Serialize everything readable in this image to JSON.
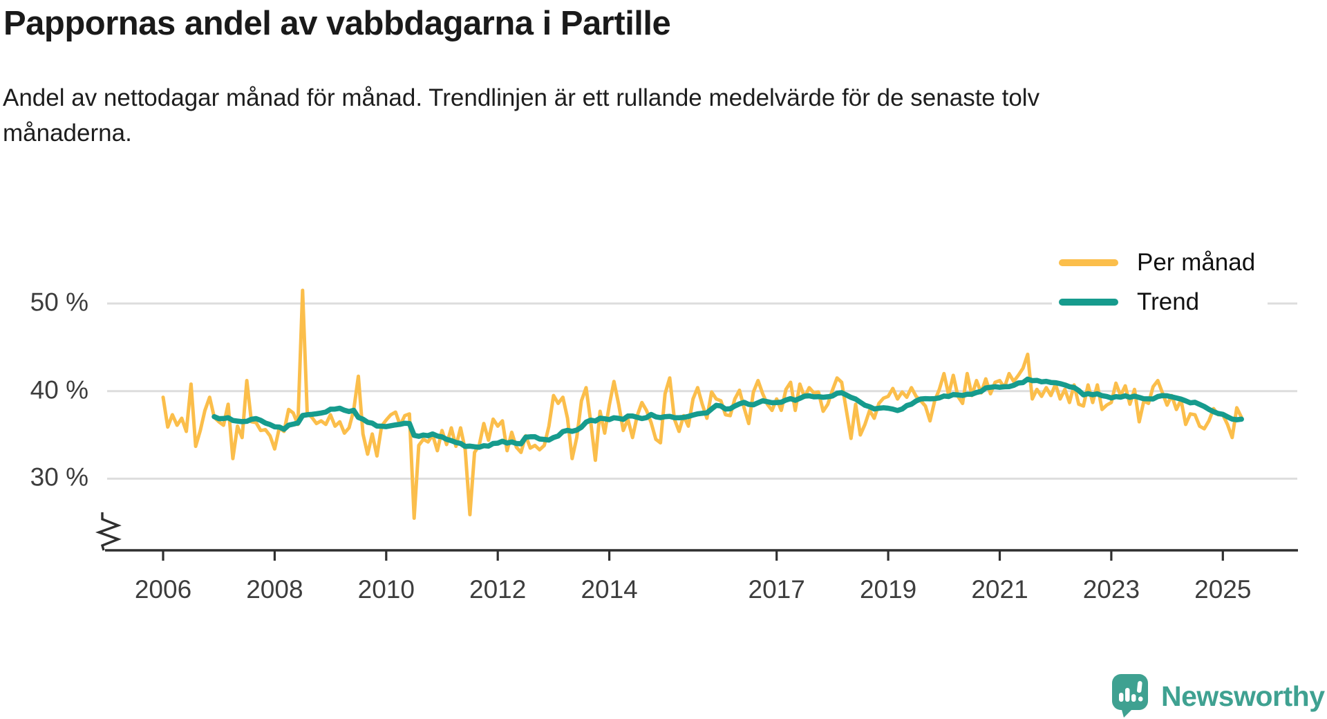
{
  "title": "Pappornas andel av vabbdagarna i Partille",
  "subtitle": "Andel av nettodagar månad för månad. Trendlinjen är ett rullande medelvärde för de senaste tolv månaderna.",
  "legend": {
    "monthly": "Per månad",
    "trend": "Trend"
  },
  "branding": {
    "name": "Newsworthy"
  },
  "colors": {
    "monthly": "#FBBE4B",
    "trend": "#169B8D",
    "grid": "#DDDDDD",
    "axis": "#2F2F2F",
    "tick_label": "#3d3d3d",
    "brand": "#3FA191"
  },
  "chart_data": {
    "type": "line",
    "title": "Pappornas andel av vabbdagarna i Partille",
    "unit": "%",
    "start_year": 2006,
    "start_month": 1,
    "frequency": "monthly",
    "x_ticks": [
      2006,
      2008,
      2010,
      2012,
      2014,
      2017,
      2019,
      2021,
      2023,
      2025
    ],
    "y_ticks": [
      "50 %",
      "40 %",
      "30 %"
    ],
    "y_tick_values": [
      50,
      40,
      30
    ],
    "y_axis_break": true,
    "grid": true,
    "legend_position": "top-right",
    "series": [
      {
        "name": "Per månad",
        "values": [
          39.3,
          35.9,
          37.3,
          36.1,
          36.9,
          35.4,
          40.8,
          33.7,
          35.5,
          37.8,
          39.3,
          37.0,
          36.5,
          36.1,
          38.5,
          32.3,
          36.0,
          34.7,
          41.2,
          36.5,
          36.4,
          35.5,
          35.6,
          34.9,
          33.4,
          35.8,
          35.4,
          37.9,
          37.5,
          36.2,
          51.5,
          37.5,
          37.0,
          36.3,
          36.6,
          36.2,
          37.3,
          36.0,
          36.5,
          35.2,
          35.8,
          37.8,
          41.7,
          35.1,
          32.8,
          35.1,
          32.6,
          36.0,
          36.7,
          37.3,
          37.6,
          36.1,
          37.2,
          37.4,
          25.5,
          33.8,
          34.5,
          34.2,
          35.0,
          33.2,
          35.5,
          33.9,
          35.8,
          33.7,
          35.8,
          33.3,
          25.9,
          33.0,
          33.8,
          36.3,
          34.4,
          36.8,
          36.0,
          36.6,
          33.2,
          35.3,
          33.6,
          33.0,
          34.9,
          33.5,
          33.8,
          33.3,
          33.8,
          36.0,
          39.5,
          38.6,
          39.3,
          36.9,
          32.3,
          34.7,
          38.9,
          40.4,
          36.5,
          32.1,
          37.7,
          35.2,
          38.4,
          41.1,
          38.5,
          35.5,
          36.8,
          34.7,
          37.2,
          38.7,
          37.8,
          36.4,
          34.5,
          34.1,
          39.7,
          41.5,
          36.8,
          35.4,
          37.2,
          36.0,
          39.1,
          40.4,
          38.5,
          36.9,
          39.9,
          39.1,
          38.9,
          37.3,
          37.2,
          39.1,
          40.1,
          38.1,
          36.3,
          39.9,
          41.2,
          39.7,
          38.5,
          37.8,
          39.1,
          37.8,
          40.2,
          41.0,
          37.8,
          40.8,
          39.3,
          40.4,
          39.8,
          39.9,
          37.7,
          38.5,
          40.1,
          41.5,
          41.0,
          37.8,
          34.6,
          38.5,
          35.0,
          36.2,
          37.8,
          36.9,
          38.6,
          39.2,
          39.4,
          40.3,
          39.1,
          39.9,
          39.3,
          40.4,
          39.4,
          38.9,
          38.3,
          36.6,
          38.9,
          40.2,
          42.0,
          39.6,
          41.8,
          39.4,
          38.6,
          42.0,
          39.5,
          41.2,
          39.8,
          41.4,
          39.7,
          41.0,
          41.2,
          40.4,
          42.0,
          41.1,
          41.8,
          42.6,
          44.2,
          39.1,
          40.2,
          39.4,
          40.4,
          39.5,
          40.8,
          39.1,
          40.2,
          38.7,
          40.7,
          38.5,
          38.3,
          40.7,
          38.7,
          40.7,
          37.9,
          38.4,
          38.7,
          40.9,
          39.5,
          40.6,
          38.5,
          40.2,
          36.5,
          38.9,
          38.6,
          40.5,
          41.2,
          39.8,
          38.4,
          39.5,
          37.9,
          39.0,
          36.2,
          37.4,
          37.3,
          36.0,
          35.7,
          36.6,
          38.0,
          37.3,
          37.3,
          36.2,
          34.7,
          38.1,
          37.0
        ]
      },
      {
        "name": "Trend",
        "derivation": "rullande medelvärde för de senaste tolv månaderna",
        "rolling_window_months": 12,
        "computed_from": "Per månad"
      }
    ]
  }
}
